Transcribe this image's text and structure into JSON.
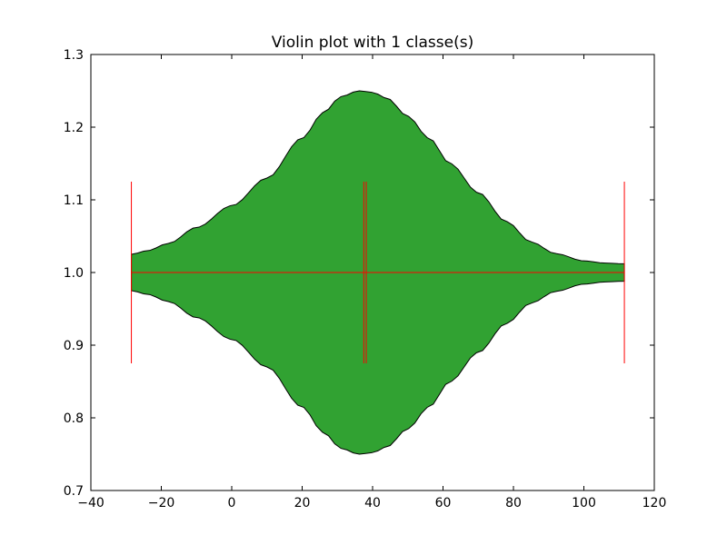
{
  "chart_data": {
    "type": "violin",
    "title": "Violin plot with 1 classe(s)",
    "xlabel": "",
    "ylabel": "",
    "xlim": [
      -40,
      120
    ],
    "ylim": [
      0.7,
      1.3
    ],
    "xticks": [
      "−40",
      "−20",
      "0",
      "20",
      "40",
      "60",
      "80",
      "100",
      "120"
    ],
    "xtick_values": [
      -40,
      -20,
      0,
      20,
      40,
      60,
      80,
      100,
      120
    ],
    "yticks": [
      "0.7",
      "0.8",
      "0.9",
      "1.0",
      "1.1",
      "1.2",
      "1.3"
    ],
    "ytick_values": [
      0.7,
      0.8,
      0.9,
      1.0,
      1.1,
      1.2,
      1.3
    ],
    "orientation": "horizontal",
    "violins": [
      {
        "position": 1.0,
        "min": -28.5,
        "max": 111.5,
        "mean": 37.5,
        "median": 38.2,
        "density_profile": [
          [
            -28.5,
            0.025
          ],
          [
            -24,
            0.03
          ],
          [
            -18,
            0.04
          ],
          [
            -10,
            0.062
          ],
          [
            0,
            0.092
          ],
          [
            10,
            0.13
          ],
          [
            20,
            0.185
          ],
          [
            26,
            0.22
          ],
          [
            31,
            0.242
          ],
          [
            36,
            0.25
          ],
          [
            40,
            0.248
          ],
          [
            44,
            0.24
          ],
          [
            50,
            0.215
          ],
          [
            56,
            0.185
          ],
          [
            62,
            0.15
          ],
          [
            70,
            0.11
          ],
          [
            78,
            0.07
          ],
          [
            85,
            0.042
          ],
          [
            92,
            0.026
          ],
          [
            100,
            0.016
          ],
          [
            106,
            0.013
          ],
          [
            111.5,
            0.012
          ]
        ],
        "fill_color": "#31a232",
        "edge_color": "#000000",
        "line_color": "#ff0000",
        "extrema_half_height": 0.125
      }
    ],
    "grid": false
  }
}
